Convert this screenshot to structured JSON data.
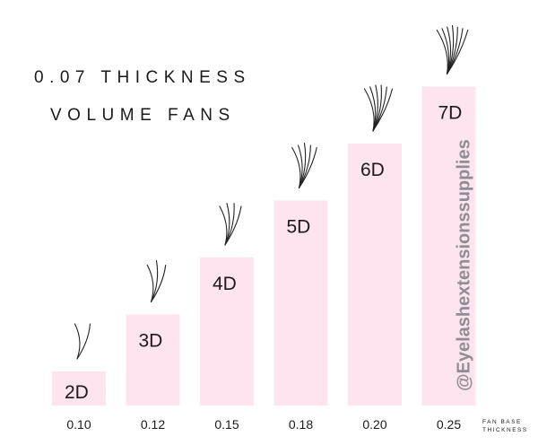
{
  "title_lines": [
    "0.07 THICKNESS",
    "VOLUME FANS"
  ],
  "axis_note": [
    "FAN BASE",
    "THICKNESS"
  ],
  "watermark": "@Eyelashextensionssupplies",
  "colors": {
    "bar": "#fde4ee",
    "text": "#1a1a1a",
    "watermark": "#8e8e92"
  },
  "chart_data": {
    "type": "bar",
    "categories": [
      "0.10",
      "0.12",
      "0.15",
      "0.18",
      "0.20",
      "0.25"
    ],
    "labels": [
      "2D",
      "3D",
      "4D",
      "5D",
      "6D",
      "7D"
    ],
    "values": [
      2,
      3,
      4,
      5,
      6,
      7
    ],
    "fan_strands": [
      2,
      3,
      4,
      5,
      6,
      7
    ],
    "title": "0.07 THICKNESS VOLUME FANS",
    "xlabel": "FAN BASE THICKNESS",
    "ylabel": "",
    "grid": false
  }
}
